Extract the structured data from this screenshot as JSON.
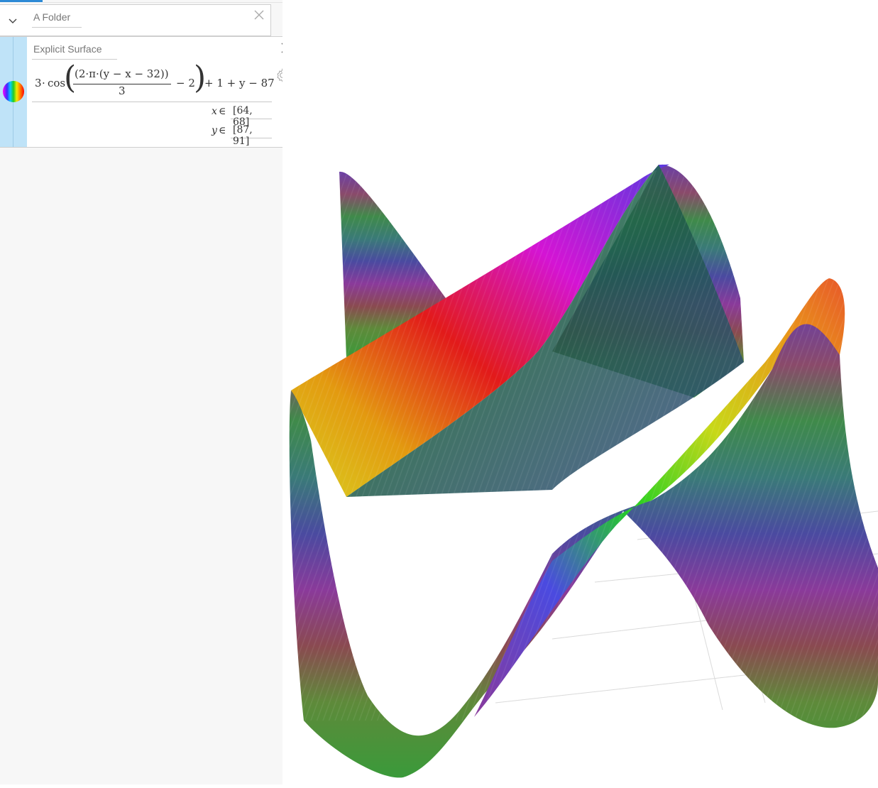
{
  "folder": {
    "title": "A Folder",
    "collapse_icon": "chevron-down-icon",
    "close_icon": "close-icon"
  },
  "surface": {
    "title": "Explicit Surface",
    "color_icon": "rainbow-swatch-icon",
    "close_icon": "close-icon",
    "settings_icon": "gear-icon",
    "formula": {
      "coef": "3",
      "func": "cos",
      "numerator": "(2·π·(y − x − 32))",
      "denominator": "3",
      "minus_term": "− 2",
      "tail": "+ 1 + y − 87"
    },
    "x_range": {
      "var": "x",
      "symbol": "∈",
      "value": "[64, 68]"
    },
    "y_range": {
      "var": "y",
      "symbol": "∈",
      "value": "[87, 91]"
    }
  },
  "plot": {
    "surface_colors": [
      "#ff0000",
      "#ff8800",
      "#eeee00",
      "#22cc22",
      "#2a6a52",
      "#3b3ba8",
      "#8a3a9a",
      "#ff00ff"
    ],
    "grid_color": "#d9d9d9"
  }
}
